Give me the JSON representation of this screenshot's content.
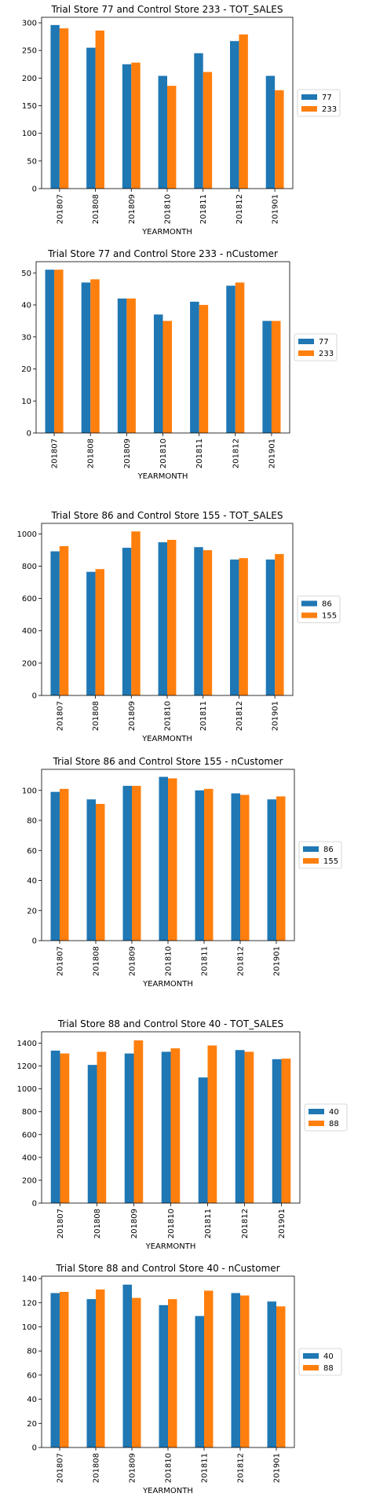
{
  "colors": {
    "series_a": "#1f77b4",
    "series_b": "#ff7f0e"
  },
  "chart_data": [
    {
      "type": "bar",
      "title": "Trial Store 77 and Control Store 233 - TOT_SALES",
      "xlabel": "YEARMONTH",
      "ylabel": "",
      "categories": [
        "201807",
        "201808",
        "201809",
        "201810",
        "201811",
        "201812",
        "201901"
      ],
      "series": [
        {
          "name": "77",
          "values": [
            296,
            255,
            225,
            204,
            245,
            267,
            204
          ]
        },
        {
          "name": "233",
          "values": [
            290,
            286,
            228,
            186,
            211,
            279,
            178
          ]
        }
      ],
      "ylim": [
        0,
        310
      ],
      "yticks": [
        0,
        50,
        100,
        150,
        200,
        250,
        300
      ],
      "grid": false,
      "legend": "center-right"
    },
    {
      "type": "bar",
      "title": "Trial Store 77 and Control Store 233 - nCustomer",
      "xlabel": "YEARMONTH",
      "ylabel": "",
      "categories": [
        "201807",
        "201808",
        "201809",
        "201810",
        "201811",
        "201812",
        "201901"
      ],
      "series": [
        {
          "name": "77",
          "values": [
            51,
            47,
            42,
            37,
            41,
            46,
            35
          ]
        },
        {
          "name": "233",
          "values": [
            51,
            48,
            42,
            35,
            40,
            47,
            35
          ]
        }
      ],
      "ylim": [
        0,
        53.5
      ],
      "yticks": [
        0,
        10,
        20,
        30,
        40,
        50
      ],
      "grid": false,
      "legend": "center-right"
    },
    {
      "type": "bar",
      "title": "Trial Store 86 and Control Store 155 - TOT_SALES",
      "xlabel": "YEARMONTH",
      "ylabel": "",
      "categories": [
        "201807",
        "201808",
        "201809",
        "201810",
        "201811",
        "201812",
        "201901"
      ],
      "series": [
        {
          "name": "86",
          "values": [
            892,
            765,
            914,
            948,
            918,
            841,
            841
          ]
        },
        {
          "name": "155",
          "values": [
            924,
            782,
            1015,
            963,
            899,
            850,
            875
          ]
        }
      ],
      "ylim": [
        0,
        1065
      ],
      "yticks": [
        0,
        200,
        400,
        600,
        800,
        1000
      ],
      "grid": false,
      "legend": "center-right"
    },
    {
      "type": "bar",
      "title": "Trial Store 86 and Control Store 155 - nCustomer",
      "xlabel": "YEARMONTH",
      "ylabel": "",
      "categories": [
        "201807",
        "201808",
        "201809",
        "201810",
        "201811",
        "201812",
        "201901"
      ],
      "series": [
        {
          "name": "86",
          "values": [
            99,
            94,
            103,
            109,
            100,
            98,
            94
          ]
        },
        {
          "name": "155",
          "values": [
            101,
            91,
            103,
            108,
            101,
            97,
            96
          ]
        }
      ],
      "ylim": [
        0,
        114
      ],
      "yticks": [
        0,
        20,
        40,
        60,
        80,
        100
      ],
      "grid": false,
      "legend": "center-right"
    },
    {
      "type": "bar",
      "title": "Trial Store 88 and Control Store 40 - TOT_SALES",
      "xlabel": "YEARMONTH",
      "ylabel": "",
      "categories": [
        "201807",
        "201808",
        "201809",
        "201810",
        "201811",
        "201812",
        "201901"
      ],
      "series": [
        {
          "name": "40",
          "values": [
            1335,
            1210,
            1310,
            1325,
            1100,
            1340,
            1260
          ]
        },
        {
          "name": "88",
          "values": [
            1310,
            1325,
            1425,
            1355,
            1380,
            1325,
            1265
          ]
        }
      ],
      "ylim": [
        0,
        1500
      ],
      "yticks": [
        0,
        200,
        400,
        600,
        800,
        1000,
        1200,
        1400
      ],
      "grid": false,
      "legend": "center-right"
    },
    {
      "type": "bar",
      "title": "Trial Store 88 and Control Store 40 - nCustomer",
      "xlabel": "YEARMONTH",
      "ylabel": "",
      "categories": [
        "201807",
        "201808",
        "201809",
        "201810",
        "201811",
        "201812",
        "201901"
      ],
      "series": [
        {
          "name": "40",
          "values": [
            128,
            123,
            135,
            118,
            109,
            128,
            121
          ]
        },
        {
          "name": "88",
          "values": [
            129,
            131,
            124,
            123,
            130,
            126,
            117
          ]
        }
      ],
      "ylim": [
        0,
        142
      ],
      "yticks": [
        0,
        20,
        40,
        60,
        80,
        100,
        120,
        140
      ],
      "grid": false,
      "legend": "center-right"
    }
  ]
}
